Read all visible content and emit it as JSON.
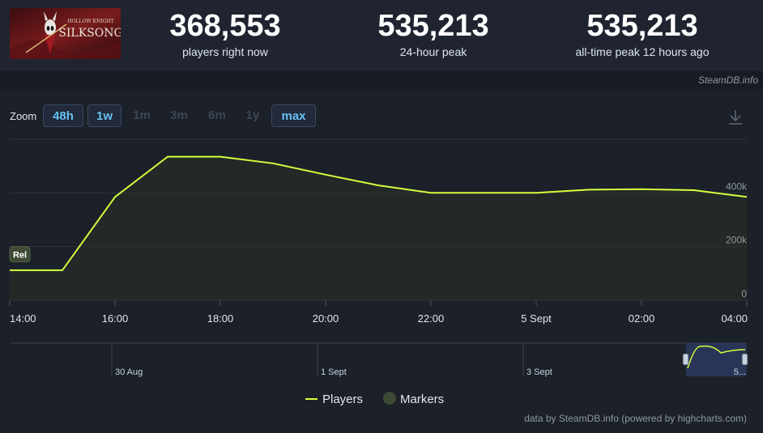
{
  "header": {
    "game_title_art": "SILKSONG",
    "game_subtitle_art": "HOLLOW KNIGHT",
    "stats": [
      {
        "value": "368,553",
        "label": "players right now"
      },
      {
        "value": "535,213",
        "label": "24-hour peak"
      },
      {
        "value": "535,213",
        "label": "all-time peak 12 hours ago"
      }
    ]
  },
  "credit_top": "SteamDB.info",
  "zoom": {
    "label": "Zoom",
    "buttons": [
      {
        "label": "48h",
        "state": "active"
      },
      {
        "label": "1w",
        "state": "active"
      },
      {
        "label": "1m",
        "state": "disabled"
      },
      {
        "label": "3m",
        "state": "disabled"
      },
      {
        "label": "6m",
        "state": "disabled"
      },
      {
        "label": "1y",
        "state": "disabled"
      },
      {
        "label": "max",
        "state": "active"
      }
    ]
  },
  "chart_data": {
    "type": "line",
    "series": [
      {
        "name": "Players",
        "color": "#d4ff3c",
        "x": [
          "13:00",
          "14:00",
          "15:00",
          "16:00",
          "17:00",
          "18:00",
          "19:00",
          "20:00",
          "21:00",
          "22:00",
          "23:00",
          "00:00",
          "01:00",
          "02:00",
          "03:00",
          "04:00"
        ],
        "values": [
          112000,
          112000,
          112000,
          385000,
          535000,
          535000,
          510000,
          468000,
          428000,
          400000,
          400000,
          400000,
          412000,
          414000,
          410000,
          385000
        ]
      }
    ],
    "markers": [
      {
        "label": "Rel",
        "x": "13:00",
        "value": 170000
      }
    ],
    "x_ticks": [
      "14:00",
      "16:00",
      "18:00",
      "20:00",
      "22:00",
      "5 Sept",
      "02:00",
      "04:00"
    ],
    "y_ticks": [
      "0",
      "200k",
      "400k"
    ],
    "ylim": [
      0,
      600000
    ],
    "grid": true,
    "legend": [
      {
        "label": "Players",
        "color": "#d4ff3c"
      },
      {
        "label": "Markers",
        "color": "#3e4a34"
      }
    ],
    "navigator": {
      "labels": [
        "30 Aug",
        "1 Sept",
        "3 Sept",
        "5..."
      ]
    }
  },
  "credit_bottom": "data by SteamDB.info (powered by highcharts.com)"
}
